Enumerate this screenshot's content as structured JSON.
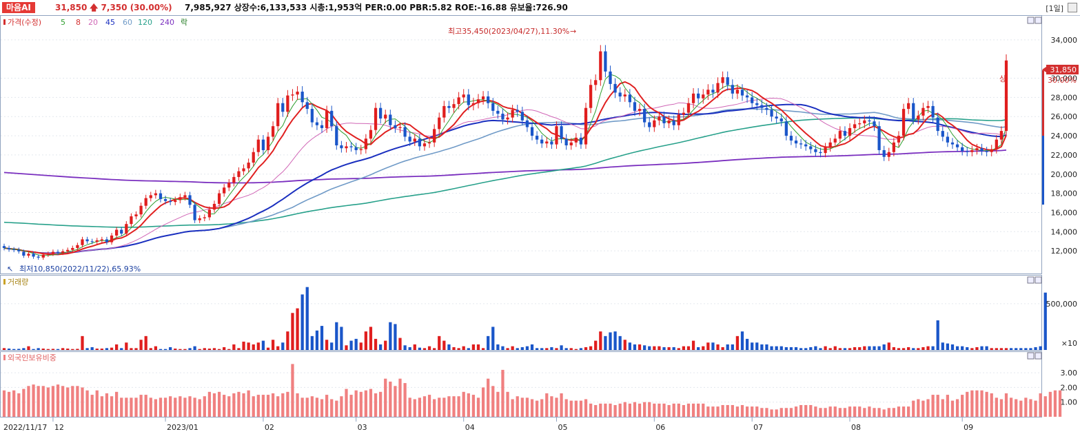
{
  "header": {
    "stock_name": "마음AI",
    "price": "31,850",
    "change": "7,350",
    "change_pct": "(30.00%)",
    "info": "7,985,927  상장수:6,133,533  시총:1,953억  PER:0.00  PBR:5.82  ROE:-16.88  유보율:726.90",
    "period": "[1일]"
  },
  "chart_data": {
    "type": "candlestick",
    "price_panel": {
      "legend": [
        "가격(수정)",
        "5",
        "8",
        "20",
        "45",
        "60",
        "120",
        "240",
        "락"
      ],
      "y_ticks": [
        12000,
        14000,
        16000,
        18000,
        20000,
        22000,
        24000,
        26000,
        28000,
        30000,
        34000
      ],
      "y_tick_labels": [
        "12,000",
        "14,000",
        "16,000",
        "18,000",
        "20,000",
        "22,000",
        "24,000",
        "26,000",
        "28,000",
        "30,000",
        "34,000"
      ],
      "ylim": [
        10000,
        36000
      ],
      "high_annotation": "최고35,450(2023/04/27),11.30%",
      "low_annotation": "최저10,850(2022/11/22),65.93%",
      "last_price_label": "31,850",
      "last_pct_label": "30.00%",
      "limit_up_label": "상",
      "closes": [
        12300,
        12150,
        12100,
        11950,
        11500,
        11700,
        11400,
        11300,
        11600,
        11700,
        11900,
        11800,
        11950,
        12100,
        12300,
        12600,
        13200,
        13000,
        12950,
        13100,
        13200,
        12900,
        13600,
        14200,
        13800,
        14800,
        15600,
        15800,
        16700,
        17500,
        17800,
        18000,
        17400,
        17200,
        17100,
        17300,
        17600,
        17800,
        16800,
        15200,
        15400,
        15500,
        16300,
        16900,
        18000,
        18600,
        19100,
        19700,
        20300,
        20600,
        21200,
        22300,
        23600,
        22500,
        23900,
        25000,
        27400,
        26500,
        28200,
        28300,
        28600,
        27500,
        26800,
        25400,
        25100,
        24800,
        26600,
        25000,
        23000,
        22700,
        22900,
        22800,
        22500,
        22600,
        23700,
        24600,
        26900,
        25800,
        26200,
        25100,
        24800,
        24900,
        23900,
        23400,
        23700,
        22900,
        23200,
        23300,
        24700,
        25900,
        27100,
        26900,
        27300,
        28000,
        28300,
        27200,
        27400,
        27800,
        28100,
        27400,
        26600,
        26300,
        25700,
        25900,
        26700,
        26500,
        25600,
        24900,
        24000,
        23600,
        23200,
        23400,
        23100,
        25000,
        23700,
        23000,
        23300,
        23800,
        23100,
        26900,
        29300,
        29800,
        32800,
        30700,
        29400,
        28500,
        28100,
        28300,
        27500,
        26600,
        26800,
        25400,
        24900,
        25600,
        26000,
        25300,
        25600,
        25100,
        26200,
        26400,
        27400,
        28400,
        27900,
        28300,
        28800,
        28500,
        29500,
        30100,
        29300,
        28400,
        28800,
        28200,
        28000,
        27400,
        27200,
        26900,
        26700,
        26000,
        25800,
        25500,
        24000,
        23500,
        23200,
        23100,
        22900,
        22600,
        22300,
        22200,
        22800,
        23300,
        23700,
        24500,
        24000,
        24800,
        25200,
        25300,
        25600,
        25500,
        25000,
        22500,
        21800,
        22300,
        23300,
        24000,
        26800,
        27400,
        25700,
        26100,
        26900,
        27100,
        25900,
        24500,
        23900,
        23300,
        23100,
        22800,
        22400,
        22300,
        22500,
        22700,
        22400,
        22300,
        22600,
        23600,
        24500,
        31850
      ],
      "opens": [
        12500,
        12300,
        12150,
        12100,
        11900,
        11500,
        11700,
        11400,
        11300,
        11600,
        11700,
        11900,
        11800,
        11950,
        12100,
        12300,
        12600,
        13200,
        13000,
        12950,
        13100,
        13200,
        12900,
        13600,
        14200,
        13800,
        14800,
        15600,
        15800,
        16700,
        17500,
        17800,
        18000,
        17400,
        17200,
        17100,
        17300,
        17600,
        17800,
        16800,
        15200,
        15400,
        15500,
        16300,
        16900,
        18000,
        18600,
        19100,
        19700,
        20300,
        20600,
        21200,
        22300,
        23600,
        22500,
        23900,
        25000,
        27400,
        26500,
        28200,
        28300,
        28600,
        27500,
        26800,
        25400,
        25100,
        24800,
        26600,
        25000,
        23000,
        22700,
        22900,
        22800,
        22500,
        22600,
        23700,
        24600,
        26900,
        25800,
        26200,
        25100,
        24800,
        24900,
        23900,
        23400,
        23700,
        22900,
        23200,
        23300,
        24700,
        25900,
        27100,
        26900,
        27300,
        28000,
        28300,
        27200,
        27400,
        27800,
        28100,
        27400,
        26600,
        26300,
        25700,
        25900,
        26700,
        26500,
        25600,
        24900,
        24000,
        23600,
        23200,
        23400,
        23100,
        25000,
        23700,
        23000,
        23300,
        23800,
        23100,
        26900,
        29300,
        29800,
        32800,
        30700,
        29400,
        28500,
        28100,
        28300,
        27500,
        26600,
        26800,
        25400,
        24900,
        25600,
        26000,
        25300,
        25600,
        25100,
        26200,
        26400,
        27400,
        28400,
        27900,
        28300,
        28800,
        28500,
        29500,
        30100,
        29300,
        28400,
        28800,
        28200,
        28000,
        27400,
        27200,
        26900,
        26700,
        26000,
        25800,
        25500,
        24000,
        23500,
        23200,
        23100,
        22900,
        22600,
        22300,
        22200,
        22800,
        23300,
        23700,
        24500,
        24000,
        24800,
        25200,
        25300,
        25600,
        25500,
        25000,
        22500,
        21800,
        22300,
        23300,
        24000,
        26800,
        27400,
        25700,
        26100,
        26900,
        27100,
        25900,
        24500,
        23900,
        23300,
        23100,
        22800,
        22400,
        22300,
        22500,
        22700,
        22400,
        22300,
        22600,
        23600,
        24500
      ]
    },
    "volume_panel": {
      "legend": "거래량",
      "y_ticks": [
        500000
      ],
      "y_tick_labels": [
        "500,000"
      ],
      "unit_label": "×10",
      "values": [
        20,
        15,
        10,
        12,
        20,
        40,
        10,
        20,
        15,
        10,
        12,
        10,
        20,
        15,
        10,
        12,
        150,
        20,
        30,
        15,
        15,
        20,
        25,
        60,
        20,
        80,
        20,
        20,
        110,
        150,
        20,
        40,
        10,
        10,
        30,
        15,
        10,
        10,
        20,
        40,
        10,
        20,
        15,
        20,
        10,
        30,
        10,
        60,
        20,
        90,
        80,
        60,
        80,
        100,
        25,
        110,
        40,
        80,
        200,
        400,
        450,
        600,
        680,
        150,
        210,
        260,
        110,
        80,
        300,
        250,
        50,
        100,
        120,
        80,
        200,
        250,
        120,
        60,
        100,
        300,
        280,
        130,
        50,
        30,
        60,
        25,
        20,
        40,
        20,
        150,
        100,
        60,
        30,
        20,
        40,
        20,
        60,
        60,
        20,
        150,
        250,
        60,
        40,
        20,
        40,
        20,
        30,
        40,
        60,
        20,
        20,
        20,
        30,
        20,
        50,
        20,
        20,
        10,
        20,
        30,
        40,
        100,
        200,
        150,
        190,
        200,
        150,
        110,
        80,
        60,
        60,
        50,
        40,
        40,
        40,
        30,
        30,
        30,
        20,
        40,
        40,
        100,
        30,
        40,
        80,
        80,
        60,
        30,
        60,
        60,
        150,
        200,
        120,
        80,
        80,
        60,
        60,
        40,
        40,
        40,
        30,
        30,
        30,
        20,
        20,
        30,
        40,
        20,
        40,
        20,
        40,
        20,
        20,
        20,
        30,
        30,
        40,
        40,
        40,
        40,
        60,
        80,
        30,
        20,
        20,
        30,
        20,
        20,
        30,
        40,
        40,
        320,
        80,
        70,
        60,
        40,
        40,
        30,
        20,
        30,
        40,
        40,
        20,
        20,
        20,
        20,
        20,
        20,
        20,
        20,
        20,
        30,
        40,
        620
      ]
    },
    "foreign_panel": {
      "legend": "외국인보유비중",
      "y_ticks": [
        1.0,
        2.0,
        3.0
      ],
      "y_tick_labels": [
        "1.00",
        "2.00",
        "3.00"
      ],
      "ylim": [
        0,
        3.9
      ],
      "values": [
        1.8,
        1.7,
        1.8,
        1.6,
        1.9,
        2.1,
        2.2,
        2.1,
        2.1,
        2.0,
        2.1,
        2.2,
        2.1,
        2.0,
        2.1,
        2.1,
        2.0,
        1.8,
        1.5,
        1.8,
        1.4,
        1.6,
        1.4,
        1.7,
        1.3,
        1.3,
        1.3,
        1.3,
        1.5,
        1.5,
        1.3,
        1.2,
        1.3,
        1.3,
        1.4,
        1.3,
        1.4,
        1.3,
        1.4,
        1.3,
        1.2,
        1.4,
        1.7,
        1.6,
        1.7,
        1.5,
        1.4,
        1.6,
        1.7,
        1.6,
        1.8,
        1.4,
        1.5,
        1.5,
        1.5,
        1.6,
        1.4,
        1.6,
        1.7,
        3.6,
        1.6,
        1.3,
        1.3,
        1.4,
        1.3,
        1.2,
        1.5,
        1.2,
        1.1,
        1.4,
        1.9,
        1.5,
        1.8,
        1.7,
        1.8,
        1.9,
        1.6,
        1.7,
        2.6,
        2.4,
        2.1,
        2.6,
        2.3,
        1.3,
        1.2,
        1.3,
        1.4,
        1.5,
        1.2,
        1.3,
        1.3,
        1.4,
        1.4,
        1.4,
        1.7,
        1.6,
        1.5,
        1.3,
        2.0,
        2.6,
        2.1,
        1.7,
        3.2,
        1.7,
        1.2,
        1.4,
        1.3,
        1.3,
        1.2,
        1.1,
        1.2,
        1.6,
        1.4,
        1.3,
        1.6,
        1.2,
        1.1,
        1.1,
        1.1,
        1.2,
        0.9,
        0.8,
        0.9,
        0.9,
        0.9,
        0.8,
        0.9,
        1.0,
        0.9,
        1.0,
        0.9,
        1.0,
        1.0,
        0.9,
        0.9,
        0.9,
        0.8,
        0.9,
        0.9,
        0.8,
        0.9,
        0.9,
        0.9,
        0.9,
        0.7,
        0.7,
        0.7,
        0.8,
        0.8,
        0.8,
        0.7,
        0.8,
        0.7,
        0.7,
        0.7,
        0.6,
        0.6,
        0.5,
        0.5,
        0.6,
        0.6,
        0.6,
        0.7,
        0.8,
        0.8,
        0.8,
        0.7,
        0.6,
        0.6,
        0.7,
        0.7,
        0.6,
        0.6,
        0.7,
        0.7,
        0.7,
        0.6,
        0.7,
        0.6,
        0.6,
        0.5,
        0.6,
        0.6,
        0.7,
        0.7,
        0.7,
        1.1,
        1.2,
        1.1,
        1.2,
        1.5,
        1.5,
        1.2,
        1.5,
        1.1,
        1.2,
        1.5,
        1.7,
        1.8,
        1.8,
        1.8,
        1.7,
        1.6,
        1.3,
        1.2,
        1.6,
        1.3,
        1.2,
        1.1,
        1.3,
        1.2,
        1.1,
        1.6,
        1.4,
        1.7,
        1.8,
        1.8
      ]
    },
    "x_axis": {
      "labels": [
        "2022/11/17",
        "12",
        "2023/01",
        "02",
        "03",
        "04",
        "05",
        "06",
        "07",
        "08",
        "09"
      ]
    }
  }
}
